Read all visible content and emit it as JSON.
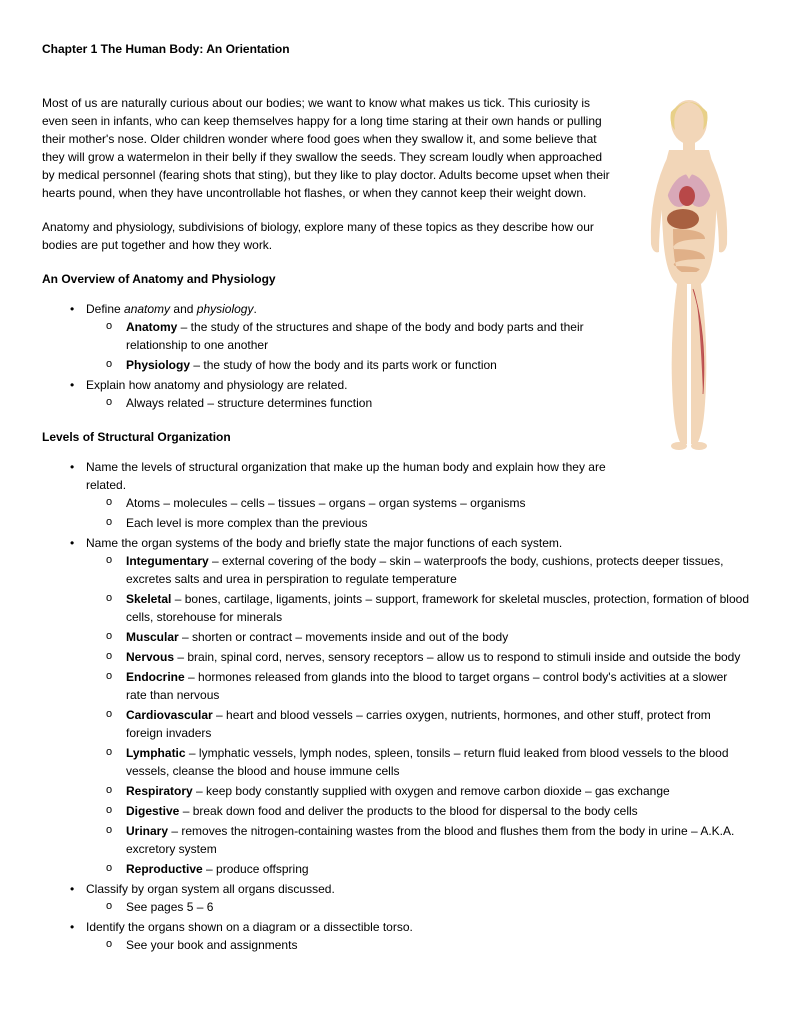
{
  "title": "Chapter 1 The Human Body: An Orientation",
  "para1": "Most of us are naturally curious about our bodies; we want to know what makes us tick. This curiosity is even seen in infants, who can keep themselves happy for a long time staring at their own hands or pulling their mother's nose. Older children wonder where food goes when they swallow it, and some believe that they will grow a watermelon in their belly if they swallow the seeds. They scream loudly when approached by medical personnel (fearing shots that sting), but they like to play doctor. Adults become upset when their hearts pound, when they have uncontrollable hot flashes, or when they cannot keep their weight down.",
  "para2": "Anatomy and physiology, subdivisions of biology, explore many of these topics as they describe how our bodies are put together and how they work.",
  "secA_head": "An Overview of Anatomy and Physiology",
  "secA": {
    "b1_pre": "Define ",
    "b1_i1": "anatomy",
    "b1_mid": " and ",
    "b1_i2": "physiology",
    "b1_post": ".",
    "b1s1_term": "Anatomy",
    "b1s1_text": " – the study of the structures and shape of the body and body parts and their relationship to one another",
    "b1s2_term": "Physiology",
    "b1s2_text": " – the study of how the body and its parts work or function",
    "b2": "Explain how anatomy and physiology are related.",
    "b2s1": "Always related – structure determines function"
  },
  "secB_head": "Levels of Structural Organization",
  "secB": {
    "b1": "Name the levels of structural organization that make up the human body and explain how they are related.",
    "b1s1": "Atoms – molecules – cells – tissues – organs – organ systems – organisms",
    "b1s2": "Each level is more complex than the previous",
    "b2": "Name the organ systems of the body and briefly state the major functions of each system.",
    "sys": [
      {
        "term": "Integumentary",
        "text": " – external covering of the body – skin – waterproofs the body, cushions, protects deeper tissues, excretes salts and urea in perspiration to regulate temperature"
      },
      {
        "term": "Skeletal",
        "text": " – bones, cartilage, ligaments, joints – support, framework for skeletal muscles, protection, formation of blood cells, storehouse for minerals"
      },
      {
        "term": "Muscular",
        "text": " – shorten or contract – movements inside and out of the body"
      },
      {
        "term": "Nervous",
        "text": " – brain, spinal cord, nerves, sensory receptors – allow us to respond to stimuli inside and outside the body"
      },
      {
        "term": "Endocrine",
        "text": " – hormones released from glands into the blood to target organs – control body's activities at a slower rate than nervous"
      },
      {
        "term": "Cardiovascular",
        "text": " – heart and blood vessels – carries oxygen, nutrients, hormones, and other stuff, protect from foreign invaders"
      },
      {
        "term": "Lymphatic",
        "text": " – lymphatic vessels, lymph nodes, spleen, tonsils – return fluid leaked from blood vessels to the blood vessels, cleanse the blood and house immune cells"
      },
      {
        "term": "Respiratory",
        "text": " – keep body constantly supplied with oxygen and remove carbon dioxide – gas exchange"
      },
      {
        "term": "Digestive",
        "text": " – break down food and deliver the products to the blood for dispersal to the body cells"
      },
      {
        "term": "Urinary",
        "text": " – removes the nitrogen-containing wastes from the blood and flushes them from the body in urine – A.K.A. excretory system"
      },
      {
        "term": "Reproductive",
        "text": " – produce offspring"
      }
    ],
    "b3": "Classify by organ system all organs discussed.",
    "b3s1": "See pages 5 – 6",
    "b4": "Identify the organs shown on a diagram or a dissectible torso.",
    "b4s1": "See your book and assignments"
  },
  "figure": {
    "skin": "#f2d6b8",
    "hair": "#e8d088",
    "lung": "#d8a8b8",
    "heart": "#b84848",
    "liver": "#a86040",
    "intestine": "#e0b088",
    "muscle": "#c05858",
    "outline": "#c9b095"
  }
}
